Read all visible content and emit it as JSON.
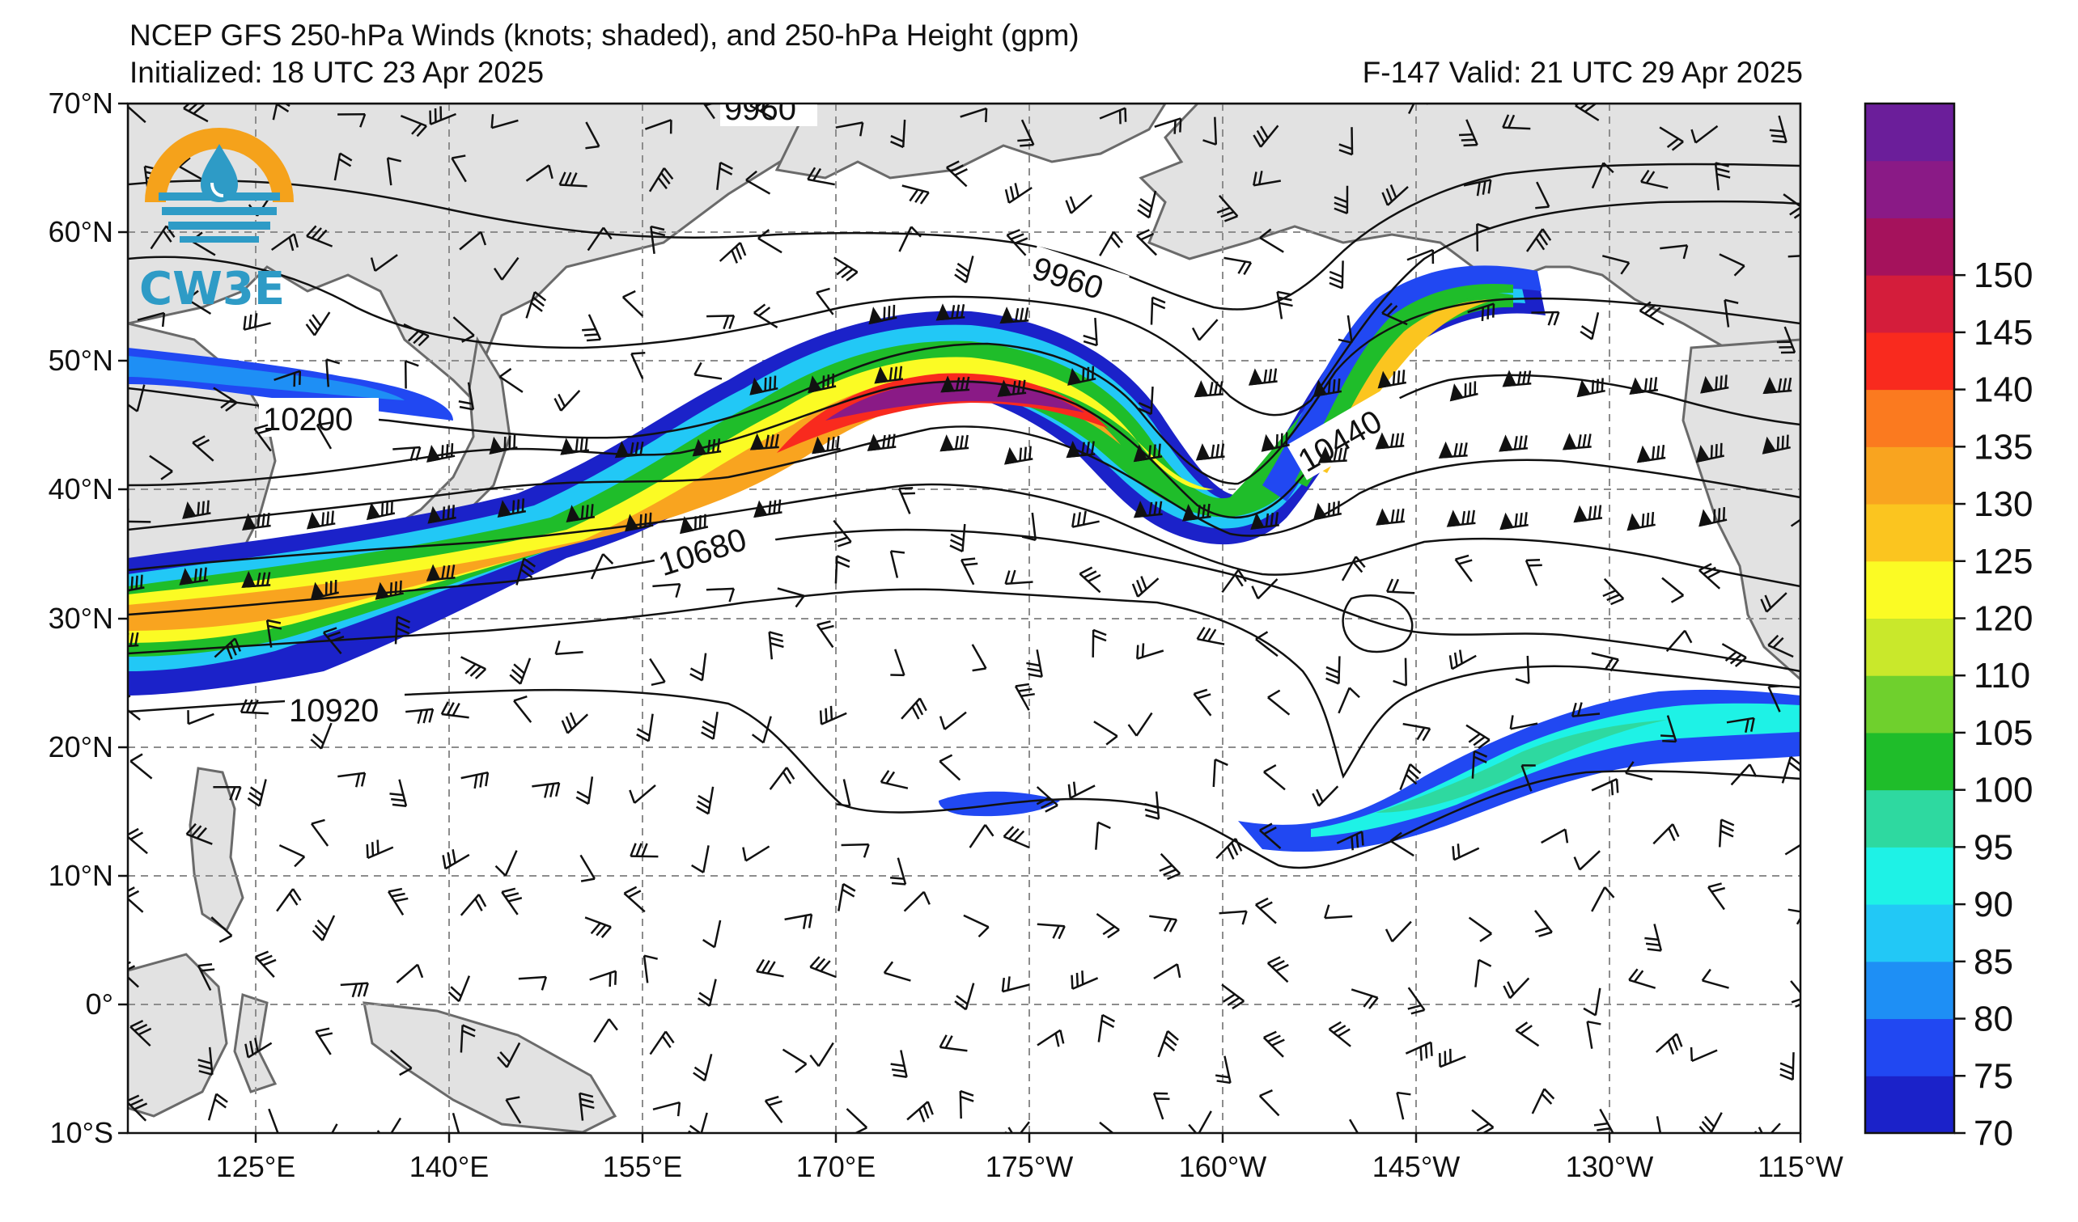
{
  "header": {
    "title": "NCEP GFS 250-hPa Winds (knots; shaded), and 250-hPa Height (gpm)",
    "initialized": "Initialized: 18 UTC 23 Apr 2025",
    "valid": "F-147  Valid: 21 UTC 29 Apr 2025"
  },
  "logo": {
    "text": "CW3E",
    "ring_color": "#f5a21b",
    "drop_color": "#2e9bc6"
  },
  "axes": {
    "lat_labels": [
      "70°N",
      "60°N",
      "50°N",
      "40°N",
      "30°N",
      "20°N",
      "10°N",
      "0°",
      "10°S"
    ],
    "lon_labels": [
      "125°E",
      "140°E",
      "155°E",
      "170°E",
      "175°W",
      "160°W",
      "145°W",
      "130°W",
      "115°W"
    ]
  },
  "contour_labels": [
    "9960",
    "9960",
    "10200",
    "10440",
    "10680",
    "10920"
  ],
  "colorbar": {
    "levels": [
      70,
      75,
      80,
      85,
      90,
      95,
      100,
      105,
      110,
      120,
      125,
      130,
      135,
      140,
      145,
      150
    ],
    "tick_labels": [
      "70",
      "75",
      "80",
      "85",
      "90",
      "95",
      "100",
      "105",
      "110",
      "120",
      "125",
      "130",
      "135",
      "140",
      "145",
      "150"
    ],
    "colors": [
      "#1b22c9",
      "#2148f2",
      "#1e8ff5",
      "#22c8f6",
      "#1ef2e6",
      "#2ed9a0",
      "#1fbd2a",
      "#6fd02d",
      "#c9e82b",
      "#fbfb24",
      "#fbc51f",
      "#f9a41f",
      "#fb7a1f",
      "#f92a1e",
      "#d41d3b",
      "#a5125c",
      "#8a1a86",
      "#6b1e9a"
    ]
  }
}
